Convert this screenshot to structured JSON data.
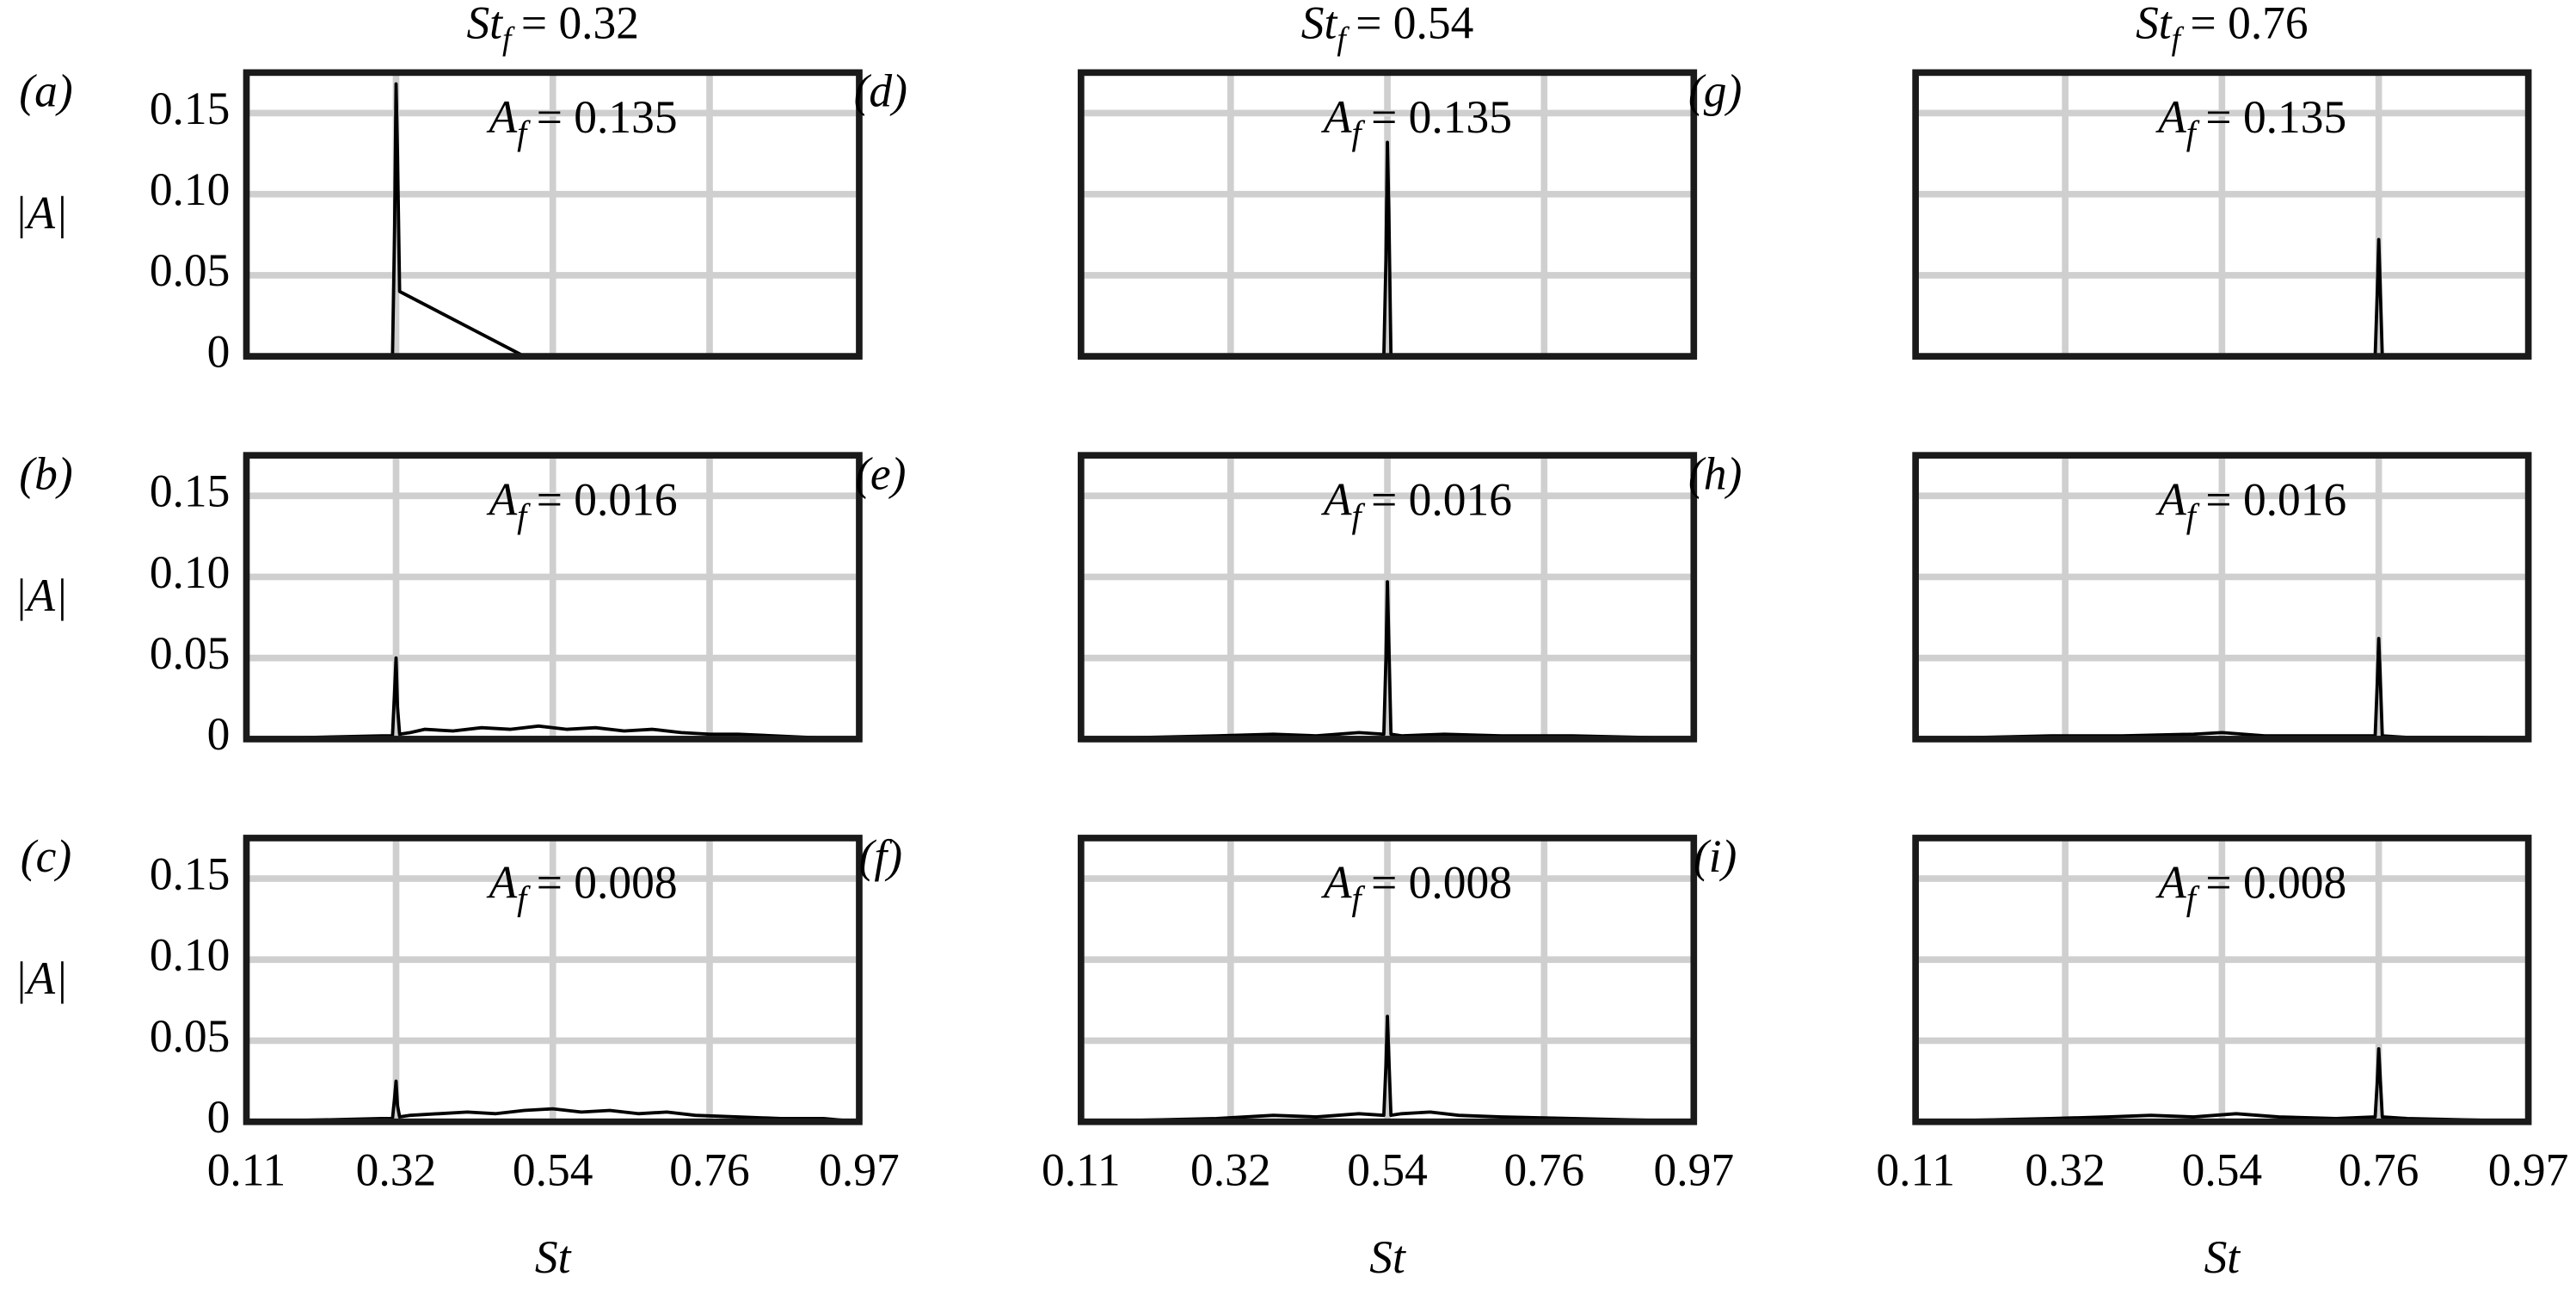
{
  "chart_data": [
    {
      "type": "line",
      "title": {
        "base": "St",
        "sub": "f",
        "rest": "= 0.32"
      },
      "panel_label": "(a)",
      "ylabel": "|A|",
      "annotation": {
        "base": "A",
        "sub": "f",
        "rest": "= 0.135"
      },
      "x": [
        0.11,
        0.3,
        0.315,
        0.318,
        0.32,
        0.322,
        0.325,
        0.5,
        0.97
      ],
      "values": [
        0,
        0,
        0,
        0.08,
        0.168,
        0.125,
        0.04,
        0,
        0
      ],
      "color": "#000000",
      "xlim": [
        0.11,
        0.97
      ],
      "ylim": [
        0,
        0.175
      ],
      "xticks": [
        0.11,
        0.32,
        0.54,
        0.76,
        0.97
      ],
      "yticks": [
        0,
        0.05,
        {
          "value": 0.1,
          "label": "0.10"
        },
        0.15
      ],
      "grid": true,
      "show_xtick_labels": false,
      "show_ytick_labels": true
    },
    {
      "type": "line",
      "panel_label": "(b)",
      "ylabel": "|A|",
      "annotation": {
        "base": "A",
        "sub": "f",
        "rest": "= 0.016"
      },
      "x": [
        0.11,
        0.2,
        0.3,
        0.315,
        0.318,
        0.32,
        0.322,
        0.325,
        0.34,
        0.36,
        0.4,
        0.44,
        0.48,
        0.52,
        0.56,
        0.6,
        0.64,
        0.68,
        0.72,
        0.76,
        0.8,
        0.85,
        0.9,
        0.97
      ],
      "values": [
        0,
        0.001,
        0.002,
        0.002,
        0.03,
        0.05,
        0.02,
        0.003,
        0.004,
        0.006,
        0.005,
        0.007,
        0.006,
        0.008,
        0.006,
        0.007,
        0.005,
        0.006,
        0.004,
        0.003,
        0.003,
        0.002,
        0.001,
        0
      ],
      "color": "#000000",
      "xlim": [
        0.11,
        0.97
      ],
      "ylim": [
        0,
        0.175
      ],
      "xticks": [
        0.11,
        0.32,
        0.54,
        0.76,
        0.97
      ],
      "yticks": [
        0,
        0.05,
        {
          "value": 0.1,
          "label": "0.10"
        },
        0.15
      ],
      "grid": true,
      "show_xtick_labels": false,
      "show_ytick_labels": true
    },
    {
      "type": "line",
      "panel_label": "(c)",
      "ylabel": "|A|",
      "xlabel": "St",
      "annotation": {
        "base": "A",
        "sub": "f",
        "rest": "= 0.008"
      },
      "x": [
        0.11,
        0.2,
        0.3,
        0.315,
        0.318,
        0.32,
        0.322,
        0.325,
        0.34,
        0.38,
        0.42,
        0.46,
        0.5,
        0.54,
        0.58,
        0.62,
        0.66,
        0.7,
        0.74,
        0.8,
        0.86,
        0.92,
        0.97
      ],
      "values": [
        0,
        0.001,
        0.002,
        0.002,
        0.015,
        0.025,
        0.01,
        0.003,
        0.004,
        0.005,
        0.006,
        0.005,
        0.007,
        0.008,
        0.006,
        0.007,
        0.005,
        0.006,
        0.004,
        0.003,
        0.002,
        0.002,
        0
      ],
      "color": "#000000",
      "xlim": [
        0.11,
        0.97
      ],
      "ylim": [
        0,
        0.175
      ],
      "xticks": [
        0.11,
        0.32,
        0.54,
        0.76,
        0.97
      ],
      "yticks": [
        0,
        0.05,
        {
          "value": 0.1,
          "label": "0.10"
        },
        0.15
      ],
      "grid": true,
      "show_xtick_labels": true,
      "show_ytick_labels": true
    },
    {
      "type": "line",
      "title": {
        "base": "St",
        "sub": "f",
        "rest": "= 0.54"
      },
      "panel_label": "(d)",
      "annotation": {
        "base": "A",
        "sub": "f",
        "rest": "= 0.135"
      },
      "x": [
        0.11,
        0.3,
        0.5,
        0.535,
        0.538,
        0.54,
        0.542,
        0.545,
        0.6,
        0.8,
        0.97
      ],
      "values": [
        0,
        0,
        0,
        0,
        0.06,
        0.132,
        0.09,
        0,
        0,
        0,
        0
      ],
      "color": "#000000",
      "xlim": [
        0.11,
        0.97
      ],
      "ylim": [
        0,
        0.175
      ],
      "xticks": [
        0.11,
        0.32,
        0.54,
        0.76,
        0.97
      ],
      "yticks": [
        0,
        0.05,
        {
          "value": 0.1,
          "label": "0.10"
        },
        0.15
      ],
      "grid": true,
      "show_xtick_labels": false,
      "show_ytick_labels": false
    },
    {
      "type": "line",
      "panel_label": "(e)",
      "annotation": {
        "base": "A",
        "sub": "f",
        "rest": "= 0.016"
      },
      "x": [
        0.11,
        0.2,
        0.3,
        0.38,
        0.44,
        0.5,
        0.535,
        0.538,
        0.54,
        0.542,
        0.545,
        0.56,
        0.62,
        0.7,
        0.8,
        0.9,
        0.97
      ],
      "values": [
        0,
        0.001,
        0.002,
        0.003,
        0.002,
        0.004,
        0.003,
        0.05,
        0.097,
        0.06,
        0.003,
        0.002,
        0.003,
        0.002,
        0.002,
        0.001,
        0
      ],
      "color": "#000000",
      "xlim": [
        0.11,
        0.97
      ],
      "ylim": [
        0,
        0.175
      ],
      "xticks": [
        0.11,
        0.32,
        0.54,
        0.76,
        0.97
      ],
      "yticks": [
        0,
        0.05,
        {
          "value": 0.1,
          "label": "0.10"
        },
        0.15
      ],
      "grid": true,
      "show_xtick_labels": false,
      "show_ytick_labels": false
    },
    {
      "type": "line",
      "panel_label": "(f)",
      "xlabel": "St",
      "annotation": {
        "base": "A",
        "sub": "f",
        "rest": "= 0.008"
      },
      "x": [
        0.11,
        0.2,
        0.3,
        0.38,
        0.44,
        0.5,
        0.535,
        0.538,
        0.54,
        0.542,
        0.545,
        0.56,
        0.6,
        0.64,
        0.7,
        0.8,
        0.9,
        0.97
      ],
      "values": [
        0,
        0.001,
        0.002,
        0.004,
        0.003,
        0.005,
        0.004,
        0.035,
        0.065,
        0.04,
        0.004,
        0.005,
        0.006,
        0.004,
        0.003,
        0.002,
        0.001,
        0
      ],
      "color": "#000000",
      "xlim": [
        0.11,
        0.97
      ],
      "ylim": [
        0,
        0.175
      ],
      "xticks": [
        0.11,
        0.32,
        0.54,
        0.76,
        0.97
      ],
      "yticks": [
        0,
        0.05,
        {
          "value": 0.1,
          "label": "0.10"
        },
        0.15
      ],
      "grid": true,
      "show_xtick_labels": true,
      "show_ytick_labels": false
    },
    {
      "type": "line",
      "title": {
        "base": "St",
        "sub": "f",
        "rest": "= 0.76"
      },
      "panel_label": "(g)",
      "annotation": {
        "base": "A",
        "sub": "f",
        "rest": "= 0.135"
      },
      "x": [
        0.11,
        0.5,
        0.755,
        0.758,
        0.76,
        0.762,
        0.765,
        0.8,
        0.97
      ],
      "values": [
        0,
        0,
        0,
        0.04,
        0.072,
        0.045,
        0,
        0,
        0
      ],
      "color": "#000000",
      "xlim": [
        0.11,
        0.97
      ],
      "ylim": [
        0,
        0.175
      ],
      "xticks": [
        0.11,
        0.32,
        0.54,
        0.76,
        0.97
      ],
      "yticks": [
        0,
        0.05,
        {
          "value": 0.1,
          "label": "0.10"
        },
        0.15
      ],
      "grid": true,
      "show_xtick_labels": false,
      "show_ytick_labels": false
    },
    {
      "type": "line",
      "panel_label": "(h)",
      "annotation": {
        "base": "A",
        "sub": "f",
        "rest": "= 0.016"
      },
      "x": [
        0.11,
        0.2,
        0.3,
        0.4,
        0.5,
        0.54,
        0.6,
        0.7,
        0.755,
        0.758,
        0.76,
        0.762,
        0.765,
        0.8,
        0.9,
        0.97
      ],
      "values": [
        0,
        0.001,
        0.002,
        0.002,
        0.003,
        0.004,
        0.002,
        0.002,
        0.002,
        0.035,
        0.062,
        0.04,
        0.002,
        0.001,
        0.001,
        0
      ],
      "color": "#000000",
      "xlim": [
        0.11,
        0.97
      ],
      "ylim": [
        0,
        0.175
      ],
      "xticks": [
        0.11,
        0.32,
        0.54,
        0.76,
        0.97
      ],
      "yticks": [
        0,
        0.05,
        {
          "value": 0.1,
          "label": "0.10"
        },
        0.15
      ],
      "grid": true,
      "show_xtick_labels": false,
      "show_ytick_labels": false
    },
    {
      "type": "line",
      "panel_label": "(i)",
      "xlabel": "St",
      "annotation": {
        "base": "A",
        "sub": "f",
        "rest": "= 0.008"
      },
      "x": [
        0.11,
        0.2,
        0.3,
        0.38,
        0.44,
        0.5,
        0.56,
        0.62,
        0.7,
        0.755,
        0.758,
        0.76,
        0.762,
        0.765,
        0.8,
        0.9,
        0.97
      ],
      "values": [
        0,
        0.001,
        0.002,
        0.003,
        0.004,
        0.003,
        0.005,
        0.003,
        0.002,
        0.003,
        0.025,
        0.045,
        0.028,
        0.003,
        0.002,
        0.001,
        0
      ],
      "color": "#000000",
      "xlim": [
        0.11,
        0.97
      ],
      "ylim": [
        0,
        0.175
      ],
      "xticks": [
        0.11,
        0.32,
        0.54,
        0.76,
        0.97
      ],
      "yticks": [
        0,
        0.05,
        {
          "value": 0.1,
          "label": "0.10"
        },
        0.15
      ],
      "grid": true,
      "show_xtick_labels": true,
      "show_ytick_labels": false
    }
  ]
}
